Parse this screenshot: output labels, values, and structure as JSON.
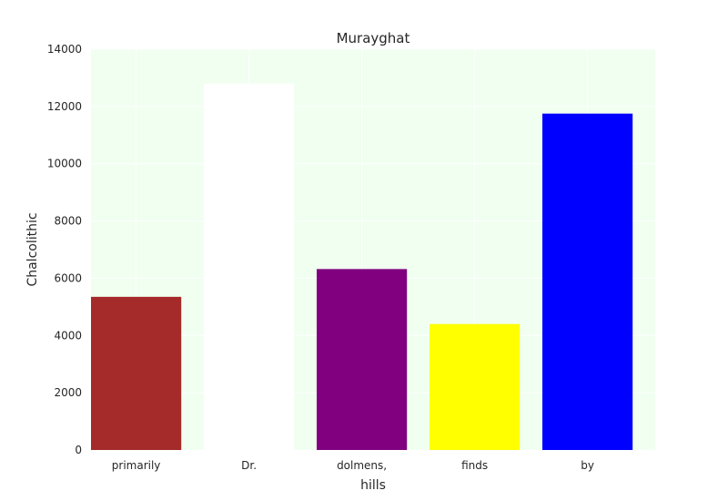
{
  "chart_data": {
    "type": "bar",
    "title": "Murayghat",
    "xlabel": "hills",
    "ylabel": "Chalcolithic",
    "categories": [
      "primarily",
      "Dr.",
      "dolmens,",
      "finds",
      "by"
    ],
    "values": [
      5350,
      12800,
      6320,
      4400,
      11750
    ],
    "colors": [
      "#a52a2a",
      "#ffffff",
      "#800080",
      "#ffff00",
      "#0000ff"
    ],
    "ylim": [
      0,
      14000
    ],
    "yticks": [
      0,
      2000,
      4000,
      6000,
      8000,
      10000,
      12000,
      14000
    ],
    "grid": true,
    "background": "#f0fff0"
  }
}
